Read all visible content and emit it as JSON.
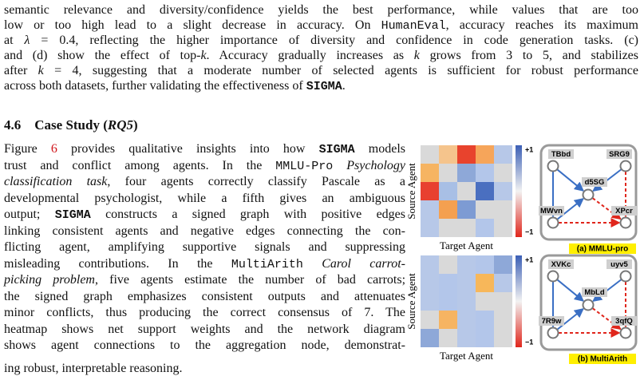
{
  "paragraphs": [
    {
      "lines": [
        [
          "semantic relevance and diversity/confidence yields the best performance, while values that are too"
        ],
        [
          "low or too high lead to a slight decrease in accuracy. On ",
          "HumanEval",
          ", accuracy reaches its maximum"
        ],
        [
          "at ",
          "λ",
          " = 0.4",
          ", reflecting the higher importance of diversity and confidence in code generation tasks. (c)"
        ],
        [
          "and (d) show the effect of top-",
          "k",
          ". Accuracy gradually increases as ",
          "k",
          " grows from 3 to 5, and stabilizes"
        ],
        [
          "after ",
          "k",
          " = 4",
          ", suggesting that a moderate number of selected agents is sufficient for robust performance"
        ],
        [
          "across both datasets, further validating the effectiveness of ",
          "SIGMA",
          "."
        ]
      ]
    },
    {
      "lines": [
        [
          "Figure ",
          "6",
          " provides qualitative insights into how ",
          "SIGMA",
          " models"
        ],
        [
          "trust and conflict among agents. In the ",
          "MMLU-Pro",
          " ",
          "Psychology"
        ],
        [
          "classification task",
          ", four agents correctly classify Pascale as a"
        ],
        [
          "developmental psychologist, while a fifth gives an ambiguous"
        ],
        [
          "output; ",
          "SIGMA",
          " constructs a signed graph with positive edges"
        ],
        [
          "linking consistent agents and negative edges connecting the con-"
        ],
        [
          "flicting agent, amplifying supportive signals and suppressing"
        ],
        [
          "misleading contributions.  In the ",
          "MultiArith",
          " ",
          "Carol carrot-"
        ],
        [
          "picking problem",
          ", five agents estimate the number of bad carrots;"
        ],
        [
          "the signed graph emphasizes consistent outputs and attenuates"
        ],
        [
          "minor conflicts, thus producing the correct consensus of 7. The"
        ],
        [
          "heatmap shows net support weights and the network diagram"
        ],
        [
          "shows agent connections to the aggregation node, demonstrat-"
        ],
        [
          "ing robust, interpretable reasoning."
        ]
      ]
    }
  ],
  "heading": {
    "number": "4.6",
    "title": [
      "Case Study (",
      "RQ5",
      ")"
    ]
  },
  "figure": {
    "panels": [
      {
        "y_label": "Source Agent",
        "x_label": "Target Agent",
        "colorbar": {
          "max": "+1",
          "min": "−1"
        },
        "cells": [
          [
            "#d9d9d9",
            "#f5c48c",
            "#e8432d",
            "#f6a55a",
            "#b7c8e8"
          ],
          [
            "#f6b462",
            "#d9d9d9",
            "#8ea8d8",
            "#b3c6ea",
            "#d9d9d9"
          ],
          [
            "#e84030",
            "#a8bfe5",
            "#d9d9d9",
            "#4a6fc0",
            "#b7c8e8"
          ],
          [
            "#b7c8e8",
            "#f4a050",
            "#7d9bd3",
            "#d9d9d9",
            "#d9d9d9"
          ],
          [
            "#b7c8e8",
            "#d9d9d9",
            "#d9d9d9",
            "#b3c6ea",
            "#d9d9d9"
          ]
        ],
        "nodes": [
          "TBbd",
          "SRG9",
          "d5SG",
          "MWvn",
          "XPcr"
        ],
        "caption": "(a) MMLU-pro"
      },
      {
        "y_label": "Source Agent",
        "x_label": "Target Agent",
        "colorbar": {
          "max": "+1",
          "min": "−1"
        },
        "cells": [
          [
            "#b7c8e8",
            "#d9d9d9",
            "#b7c8e8",
            "#b3c6ea",
            "#8ea8d8"
          ],
          [
            "#b7c8e8",
            "#b3c6ea",
            "#b7c8e8",
            "#f7b75a",
            "#b7c8e8"
          ],
          [
            "#b7c8e8",
            "#b3c6ea",
            "#b7c8e8",
            "#d9d9d9",
            "#d9d9d9"
          ],
          [
            "#d9d9d9",
            "#f6b462",
            "#b7c8e8",
            "#b3c6ea",
            "#d9d9d9"
          ],
          [
            "#8ea8d8",
            "#d9d9d9",
            "#b7c8e8",
            "#b3c6ea",
            "#d9d9d9"
          ]
        ],
        "nodes": [
          "XVKc",
          "uyv5",
          "MbLd",
          "7R9w",
          "3qfQ"
        ],
        "caption": "(b) MultiArith"
      }
    ]
  }
}
